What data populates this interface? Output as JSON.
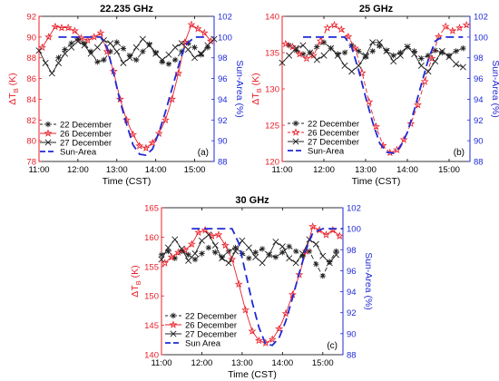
{
  "colors": {
    "left_axis": "#e8202a",
    "right_axis": "#1f2ad6",
    "dec22": "#222222",
    "dec26": "#e8202a",
    "dec27": "#222222",
    "sun": "#1f2ad6"
  },
  "chart_data": [
    {
      "type": "line",
      "title": "22.235 GHz",
      "panel_label": "(a)",
      "xlabel": "Time (CST)",
      "ylabel_main": "ΔT",
      "ylabel_sub": "B",
      "ylabel_unit": " (K)",
      "y2label": "Sun-Area (%)",
      "xlim": [
        "11:00",
        "15:30"
      ],
      "xticks": [
        "11:00",
        "12:00",
        "13:00",
        "14:00",
        "15:00"
      ],
      "ylim": [
        78,
        92
      ],
      "yticks": [
        78,
        80,
        82,
        84,
        86,
        88,
        90,
        92
      ],
      "y2lim": [
        88,
        102
      ],
      "y2ticks": [
        88,
        90,
        92,
        94,
        96,
        98,
        100,
        102
      ],
      "legend_position": "bottom-left",
      "series": [
        {
          "name": "22 December",
          "axis": "left",
          "marker": "asterisk",
          "dash": "5,3",
          "x": [
            "11:30",
            "11:40",
            "11:50",
            "12:00",
            "12:10",
            "12:20",
            "12:30",
            "12:40",
            "12:50",
            "13:00",
            "13:10",
            "13:20",
            "13:30",
            "13:40",
            "13:50",
            "14:00",
            "14:10",
            "14:20",
            "14:30",
            "14:40",
            "14:50",
            "15:00",
            "15:10",
            "15:20"
          ],
          "y": [
            88.0,
            88.8,
            89.4,
            89.8,
            89.4,
            88.6,
            87.6,
            87.8,
            88.6,
            89.5,
            88.9,
            88.2,
            87.8,
            88.6,
            89.3,
            88.5,
            87.6,
            87.4,
            87.8,
            88.6,
            89.4,
            89.0,
            88.3,
            89.0
          ]
        },
        {
          "name": "26 December",
          "axis": "left",
          "marker": "star",
          "dash": "",
          "x": [
            "11:05",
            "11:15",
            "11:25",
            "11:35",
            "11:45",
            "11:55",
            "12:05",
            "12:15",
            "12:25",
            "12:35",
            "12:45",
            "12:55",
            "13:05",
            "13:15",
            "13:25",
            "13:35",
            "13:45",
            "13:55",
            "14:05",
            "14:15",
            "14:25",
            "14:35",
            "14:45",
            "14:55",
            "15:05",
            "15:15",
            "15:25"
          ],
          "y": [
            89.0,
            90.0,
            91.0,
            90.9,
            90.9,
            90.6,
            89.9,
            89.7,
            90.0,
            90.4,
            88.6,
            86.7,
            84.0,
            82.0,
            80.6,
            79.5,
            79.3,
            79.8,
            80.7,
            82.0,
            84.0,
            86.5,
            89.5,
            91.2,
            90.8,
            90.4,
            89.6
          ]
        },
        {
          "name": "27 December",
          "axis": "left",
          "marker": "x",
          "dash": "",
          "x": [
            "11:00",
            "11:10",
            "11:20",
            "11:30",
            "11:40",
            "11:50",
            "12:00",
            "12:10",
            "12:20",
            "12:30",
            "12:40",
            "12:50",
            "13:00",
            "13:10",
            "13:20",
            "13:30",
            "13:40",
            "13:50",
            "14:00",
            "14:10",
            "14:20",
            "14:30",
            "14:40",
            "14:50",
            "15:00",
            "15:10",
            "15:20",
            "15:30"
          ],
          "y": [
            88.7,
            87.5,
            86.5,
            87.5,
            88.4,
            89.0,
            89.6,
            89.2,
            88.4,
            89.0,
            89.7,
            89.4,
            88.6,
            87.5,
            88.0,
            89.0,
            89.8,
            89.2,
            88.4,
            87.8,
            88.3,
            89.0,
            89.4,
            88.8,
            88.0,
            88.4,
            89.2,
            89.8
          ]
        },
        {
          "name": "Sun-Area",
          "axis": "right",
          "marker": "none",
          "dash": "9,5",
          "x": [
            "11:30",
            "12:35",
            "12:45",
            "12:55",
            "13:05",
            "13:15",
            "13:25",
            "13:35",
            "13:45",
            "13:55",
            "14:05",
            "14:15",
            "14:25",
            "14:35",
            "14:45",
            "15:00",
            "15:15"
          ],
          "y": [
            100,
            100,
            99.0,
            96.5,
            93.8,
            91.6,
            89.6,
            88.7,
            88.6,
            89.2,
            90.8,
            92.8,
            95.0,
            97.2,
            99.2,
            100,
            100
          ]
        }
      ]
    },
    {
      "type": "line",
      "title": "25 GHz",
      "panel_label": "(b)",
      "xlabel": "Time (CST)",
      "ylabel_main": "ΔT",
      "ylabel_sub": "B",
      "ylabel_unit": " (K)",
      "y2label": "Sun-Area (%)",
      "xlim": [
        "11:00",
        "15:30"
      ],
      "xticks": [
        "11:00",
        "12:00",
        "13:00",
        "14:00",
        "15:00"
      ],
      "ylim": [
        120,
        140
      ],
      "yticks": [
        120,
        125,
        130,
        135,
        140
      ],
      "y2lim": [
        88,
        102
      ],
      "y2ticks": [
        88,
        90,
        92,
        94,
        96,
        98,
        100,
        102
      ],
      "legend_position": "bottom-right",
      "series": [
        {
          "name": "22 December",
          "axis": "left",
          "marker": "asterisk",
          "dash": "5,3",
          "x": [
            "11:10",
            "11:20",
            "11:30",
            "11:40",
            "11:50",
            "12:00",
            "12:10",
            "12:20",
            "12:30",
            "12:40",
            "12:50",
            "13:00",
            "13:10",
            "13:20",
            "13:30",
            "13:40",
            "13:50",
            "14:00",
            "14:10",
            "14:20",
            "14:30",
            "14:40",
            "14:50",
            "15:00",
            "15:10",
            "15:20"
          ],
          "y": [
            136.0,
            135.3,
            134.8,
            135.0,
            135.8,
            136.4,
            135.6,
            134.8,
            135.0,
            136.0,
            135.2,
            134.4,
            135.2,
            135.9,
            135.3,
            134.6,
            135.0,
            135.8,
            135.2,
            134.2,
            134.6,
            135.3,
            135.0,
            134.6,
            135.2,
            135.6
          ]
        },
        {
          "name": "26 December",
          "axis": "left",
          "marker": "star",
          "dash": "5,3",
          "x": [
            "11:05",
            "11:15",
            "11:25",
            "11:35",
            "11:45",
            "11:55",
            "12:05",
            "12:15",
            "12:25",
            "12:35",
            "12:45",
            "12:55",
            "13:05",
            "13:15",
            "13:25",
            "13:35",
            "13:45",
            "13:55",
            "14:05",
            "14:15",
            "14:25",
            "14:35",
            "14:45",
            "14:55",
            "15:05",
            "15:15",
            "15:25"
          ],
          "y": [
            136.2,
            135.8,
            134.8,
            134.2,
            134.6,
            136.6,
            138.4,
            138.8,
            138.2,
            137.2,
            135.6,
            132.2,
            128.2,
            124.8,
            122.2,
            121.2,
            121.6,
            123.0,
            125.2,
            127.8,
            131.0,
            134.2,
            137.2,
            138.6,
            138.0,
            138.4,
            138.8
          ]
        },
        {
          "name": "27 December",
          "axis": "left",
          "marker": "x",
          "dash": "",
          "x": [
            "11:00",
            "11:10",
            "11:20",
            "11:30",
            "11:40",
            "11:50",
            "12:00",
            "12:10",
            "12:20",
            "12:30",
            "12:40",
            "12:50",
            "13:00",
            "13:10",
            "13:20",
            "13:30",
            "13:40",
            "13:50",
            "14:00",
            "14:10",
            "14:20",
            "14:30",
            "14:40",
            "14:50",
            "15:00",
            "15:10",
            "15:20"
          ],
          "y": [
            133.6,
            134.6,
            135.6,
            136.0,
            135.0,
            134.0,
            134.6,
            135.6,
            134.6,
            133.2,
            132.4,
            133.2,
            134.6,
            136.4,
            136.4,
            135.2,
            133.8,
            134.6,
            135.8,
            134.8,
            133.2,
            132.4,
            133.8,
            135.2,
            134.4,
            133.4,
            133.0
          ]
        },
        {
          "name": "Sun-Area",
          "axis": "right",
          "marker": "none",
          "dash": "9,5",
          "x": [
            "11:30",
            "12:30",
            "12:40",
            "12:50",
            "13:00",
            "13:10",
            "13:20",
            "13:30",
            "13:40",
            "13:50",
            "14:00",
            "14:10",
            "14:20",
            "14:30",
            "14:40",
            "14:50",
            "15:20"
          ],
          "y": [
            100,
            100,
            99.0,
            96.8,
            94.2,
            91.8,
            89.8,
            88.9,
            88.8,
            89.4,
            90.8,
            93.0,
            95.4,
            97.8,
            99.6,
            100,
            100
          ]
        }
      ]
    },
    {
      "type": "line",
      "title": "30 GHz",
      "panel_label": "(c)",
      "xlabel": "Time (CST)",
      "ylabel_main": "ΔT",
      "ylabel_sub": "B",
      "ylabel_unit": " (K)",
      "y2label": "Sun-Area (%)",
      "xlim": [
        "11:00",
        "15:30"
      ],
      "xticks": [
        "11:00",
        "12:00",
        "13:00",
        "14:00",
        "15:00"
      ],
      "ylim": [
        140,
        165
      ],
      "yticks": [
        140,
        145,
        150,
        155,
        160,
        165
      ],
      "y2lim": [
        88,
        102
      ],
      "y2ticks": [
        88,
        90,
        92,
        94,
        96,
        98,
        100,
        102
      ],
      "legend_position": "bottom-left",
      "series": [
        {
          "name": "22 December",
          "axis": "left",
          "marker": "asterisk",
          "dash": "5,3",
          "x": [
            "11:00",
            "11:10",
            "11:20",
            "11:30",
            "11:40",
            "11:50",
            "12:00",
            "12:10",
            "12:20",
            "12:30",
            "12:40",
            "12:50",
            "13:00",
            "13:10",
            "13:20",
            "13:30",
            "13:40",
            "13:50",
            "14:00",
            "14:10",
            "14:20",
            "14:30",
            "14:40",
            "14:50",
            "15:00",
            "15:10",
            "15:20"
          ],
          "y": [
            157.0,
            157.6,
            156.4,
            157.6,
            157.0,
            156.2,
            157.2,
            158.2,
            157.4,
            156.6,
            157.6,
            158.2,
            157.2,
            156.4,
            157.4,
            158.0,
            157.0,
            156.6,
            157.4,
            158.4,
            157.6,
            156.8,
            157.6,
            155.4,
            153.4,
            155.8,
            157.6
          ]
        },
        {
          "name": "26 December",
          "axis": "left",
          "marker": "star",
          "dash": "",
          "x": [
            "11:05",
            "11:15",
            "11:25",
            "11:35",
            "11:45",
            "11:55",
            "12:05",
            "12:15",
            "12:25",
            "12:35",
            "12:45",
            "12:55",
            "13:05",
            "13:15",
            "13:25",
            "13:35",
            "13:45",
            "13:55",
            "14:05",
            "14:15",
            "14:25",
            "14:35",
            "14:45",
            "14:55",
            "15:05",
            "15:15",
            "15:25"
          ],
          "y": [
            155.6,
            156.6,
            157.4,
            157.8,
            158.8,
            160.8,
            161.2,
            160.2,
            160.4,
            158.6,
            156.2,
            152.0,
            147.6,
            144.0,
            142.4,
            142.0,
            142.6,
            144.4,
            147.0,
            150.2,
            153.6,
            157.6,
            161.8,
            161.2,
            160.4,
            161.2,
            160.2
          ]
        },
        {
          "name": "27 December",
          "axis": "left",
          "marker": "x",
          "dash": "",
          "x": [
            "11:00",
            "11:10",
            "11:20",
            "11:30",
            "11:40",
            "11:50",
            "12:00",
            "12:10",
            "12:20",
            "12:30",
            "12:40",
            "12:50",
            "13:00",
            "13:10",
            "13:20",
            "13:30",
            "13:40",
            "13:50",
            "14:00",
            "14:10",
            "14:20",
            "14:30",
            "14:40",
            "14:50",
            "15:00",
            "15:10",
            "15:20"
          ],
          "y": [
            156.2,
            158.2,
            159.6,
            158.0,
            156.0,
            157.2,
            159.4,
            160.4,
            158.6,
            156.4,
            155.6,
            157.6,
            159.4,
            158.2,
            156.6,
            155.6,
            157.0,
            159.2,
            158.4,
            156.4,
            155.6,
            157.2,
            159.6,
            158.8,
            156.8,
            155.6,
            157.0
          ]
        },
        {
          "name": "Sun Area",
          "axis": "right",
          "marker": "none",
          "dash": "9,5",
          "x": [
            "11:45",
            "12:45",
            "12:55",
            "13:05",
            "13:15",
            "13:25",
            "13:35",
            "13:45",
            "13:55",
            "14:05",
            "14:15",
            "14:25",
            "14:35",
            "14:45",
            "15:00",
            "15:30"
          ],
          "y": [
            100,
            100,
            98.6,
            95.8,
            93.0,
            90.6,
            89.0,
            88.9,
            89.6,
            91.2,
            93.4,
            95.8,
            98.0,
            99.6,
            100,
            100
          ]
        }
      ]
    }
  ]
}
